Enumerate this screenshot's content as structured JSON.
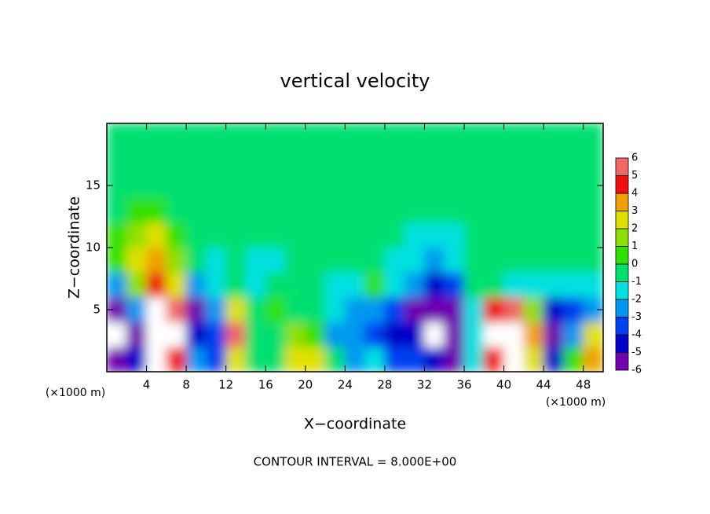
{
  "chart_data": {
    "type": "heatmap",
    "title": "vertical velocity",
    "x_label": "X−coordinate",
    "y_label": "Z−coordinate",
    "x_unit_left": "(×1000 m)",
    "x_unit_right": "(×1000 m)",
    "annotation": "CONTOUR INTERVAL = 8.000E+00",
    "xlim": [
      0,
      50
    ],
    "ylim": [
      0,
      20
    ],
    "xticks": [
      4,
      8,
      12,
      16,
      20,
      24,
      28,
      32,
      36,
      40,
      44,
      48
    ],
    "yticks": [
      5,
      10,
      15
    ],
    "x": [
      1,
      3,
      5,
      7,
      9,
      11,
      13,
      15,
      17,
      19,
      21,
      23,
      25,
      27,
      29,
      31,
      33,
      35,
      37,
      39,
      41,
      43,
      45,
      47,
      49
    ],
    "y": [
      1,
      3,
      5,
      7,
      9,
      11,
      13,
      15,
      17,
      19
    ],
    "z": [
      [
        -5,
        -4,
        8,
        5,
        -2,
        -3,
        3,
        0,
        0,
        3,
        3,
        0,
        -2,
        -1,
        -3,
        -3,
        -4,
        -5,
        -1,
        5,
        7,
        3,
        -4,
        1,
        4
      ],
      [
        -8,
        -5,
        9,
        7,
        -4,
        -3,
        6,
        0,
        0,
        2,
        1,
        -2,
        -2,
        -3,
        -4,
        -4,
        -8,
        -6,
        -1,
        7,
        9,
        4,
        -6,
        -2,
        3
      ],
      [
        -6,
        -2,
        9,
        6,
        -5,
        -2,
        3,
        0,
        1,
        0,
        0,
        -1,
        -2,
        -2,
        -3,
        -5,
        -6,
        -5,
        -1,
        5,
        6,
        2,
        -4,
        -3,
        -2
      ],
      [
        -2,
        2,
        5,
        3,
        -2,
        -1,
        0,
        -1,
        0,
        0,
        0,
        -1,
        -1,
        1,
        -1,
        -2,
        -4,
        -3,
        0,
        0,
        -1,
        -1,
        -1,
        -1,
        -1
      ],
      [
        1,
        3,
        4,
        2,
        0,
        -1,
        0,
        -1,
        -1,
        0,
        0,
        0,
        0,
        0,
        -1,
        -1,
        -2,
        -1,
        0,
        0,
        0,
        0,
        0,
        0,
        0
      ],
      [
        1,
        2,
        3,
        1,
        0,
        0,
        0,
        0,
        0,
        0,
        0,
        0,
        0,
        0,
        0,
        -1,
        -1,
        -1,
        0,
        0,
        0,
        0,
        0,
        0,
        0
      ],
      [
        0,
        1,
        1,
        0,
        0,
        0,
        0,
        0,
        0,
        0,
        0,
        0,
        0,
        0,
        0,
        0,
        0,
        0,
        0,
        0,
        0,
        0,
        0,
        0,
        0
      ],
      [
        0,
        0,
        0,
        0,
        0,
        0,
        0,
        0,
        0,
        0,
        0,
        0,
        0,
        0,
        0,
        0,
        0,
        0,
        0,
        0,
        0,
        0,
        0,
        0,
        0
      ],
      [
        0,
        0,
        0,
        0,
        0,
        0,
        0,
        0,
        0,
        0,
        0,
        0,
        0,
        0,
        0,
        0,
        0,
        0,
        0,
        0,
        0,
        0,
        0,
        0,
        0
      ],
      [
        0,
        0,
        0,
        0,
        0,
        0,
        0,
        0,
        0,
        0,
        0,
        0,
        0,
        0,
        0,
        0,
        0,
        0,
        0,
        0,
        0,
        0,
        0,
        0,
        0
      ]
    ],
    "colorbar": {
      "levels": [
        -6,
        -5,
        -4,
        -3,
        -2,
        -1,
        0,
        1,
        2,
        3,
        4,
        5,
        6
      ],
      "colors": [
        "#7000b0",
        "#0000c8",
        "#0040f0",
        "#0098f0",
        "#00e0e0",
        "#00e070",
        "#30e000",
        "#90e000",
        "#e0e000",
        "#f0a000",
        "#f01010",
        "#f06868",
        "#f5b0b0"
      ]
    },
    "extend_color": "#ffffff"
  }
}
